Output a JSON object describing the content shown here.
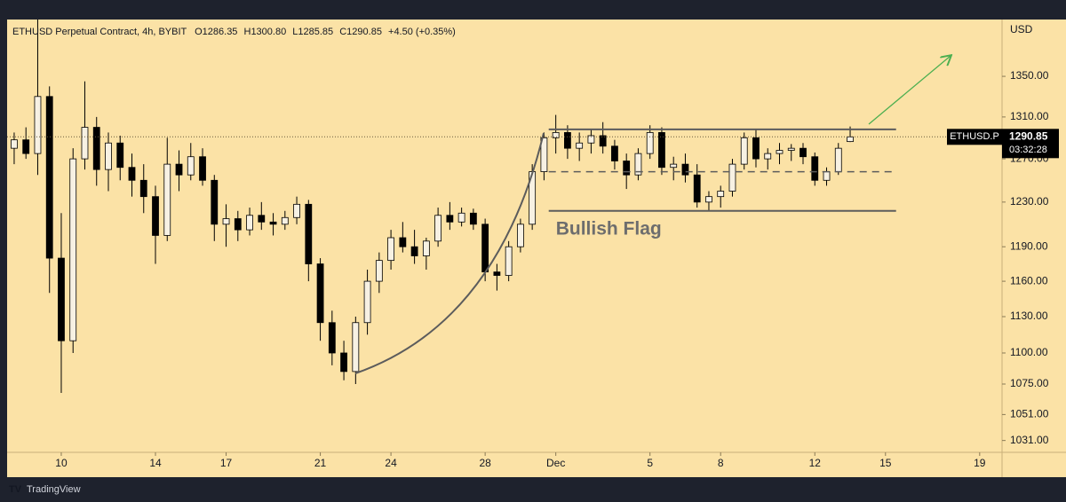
{
  "chart_data": {
    "type": "candlestick",
    "header": {
      "symbol": "ETHUSD Perpetual Contract, 4h, BYBIT",
      "open": "O1286.35",
      "high": "H1300.80",
      "low": "L1285.85",
      "close": "C1290.85",
      "change": "+4.50 (+0.35%)"
    },
    "currency": "USD",
    "symbol_tag": "ETHUSD.P",
    "last_price_label": "1290.85",
    "countdown": "03:32:28",
    "footer": "TradingView",
    "up_color": "#f7f1e3",
    "down_color": "#000000",
    "log_scale": true,
    "ylim": [
      1022,
      1408
    ],
    "yticks": [
      {
        "value": 1350,
        "label": "1350.00"
      },
      {
        "value": 1310,
        "label": "1310.00"
      },
      {
        "value": 1270,
        "label": "1270.00"
      },
      {
        "value": 1230,
        "label": "1230.00"
      },
      {
        "value": 1190,
        "label": "1190.00"
      },
      {
        "value": 1160,
        "label": "1160.00"
      },
      {
        "value": 1130,
        "label": "1130.00"
      },
      {
        "value": 1100,
        "label": "1100.00"
      },
      {
        "value": 1075,
        "label": "1075.00"
      },
      {
        "value": 1051,
        "label": "1051.00"
      },
      {
        "value": 1031,
        "label": "1031.00"
      }
    ],
    "xlim": [
      -0.6,
      83.9
    ],
    "xticks": [
      {
        "value": 4,
        "label": "10"
      },
      {
        "value": 12,
        "label": "14"
      },
      {
        "value": 18,
        "label": "17"
      },
      {
        "value": 26,
        "label": "21"
      },
      {
        "value": 32,
        "label": "24"
      },
      {
        "value": 40,
        "label": "28"
      },
      {
        "value": 46,
        "label": "Dec"
      },
      {
        "value": 54,
        "label": "5"
      },
      {
        "value": 60,
        "label": "8"
      },
      {
        "value": 68,
        "label": "12"
      },
      {
        "value": 74,
        "label": "15"
      },
      {
        "value": 82,
        "label": "19"
      }
    ],
    "flag": {
      "label": "Bullish Flag",
      "top": 1298,
      "middle": 1258,
      "bottom": 1222,
      "start": 45.4,
      "end": 74.9
    },
    "candles": [
      [
        1280,
        1295,
        1265,
        1288
      ],
      [
        1288,
        1300,
        1270,
        1275
      ],
      [
        1275,
        1410,
        1255,
        1330
      ],
      [
        1330,
        1340,
        1150,
        1180
      ],
      [
        1180,
        1220,
        1068,
        1110
      ],
      [
        1110,
        1280,
        1100,
        1270
      ],
      [
        1270,
        1345,
        1260,
        1300
      ],
      [
        1300,
        1310,
        1245,
        1260
      ],
      [
        1260,
        1295,
        1240,
        1285
      ],
      [
        1285,
        1292,
        1250,
        1262
      ],
      [
        1262,
        1275,
        1235,
        1250
      ],
      [
        1250,
        1265,
        1220,
        1235
      ],
      [
        1235,
        1245,
        1175,
        1200
      ],
      [
        1200,
        1290,
        1195,
        1265
      ],
      [
        1265,
        1278,
        1240,
        1255
      ],
      [
        1255,
        1285,
        1250,
        1272
      ],
      [
        1272,
        1280,
        1245,
        1250
      ],
      [
        1250,
        1255,
        1195,
        1210
      ],
      [
        1210,
        1228,
        1190,
        1215
      ],
      [
        1215,
        1222,
        1195,
        1205
      ],
      [
        1205,
        1225,
        1200,
        1218
      ],
      [
        1218,
        1230,
        1205,
        1212
      ],
      [
        1212,
        1220,
        1200,
        1210
      ],
      [
        1210,
        1222,
        1205,
        1216
      ],
      [
        1216,
        1235,
        1210,
        1228
      ],
      [
        1228,
        1232,
        1160,
        1175
      ],
      [
        1175,
        1180,
        1110,
        1125
      ],
      [
        1125,
        1135,
        1090,
        1100
      ],
      [
        1100,
        1110,
        1078,
        1085
      ],
      [
        1085,
        1130,
        1075,
        1125
      ],
      [
        1125,
        1170,
        1115,
        1160
      ],
      [
        1160,
        1185,
        1150,
        1178
      ],
      [
        1178,
        1205,
        1170,
        1198
      ],
      [
        1198,
        1212,
        1185,
        1190
      ],
      [
        1190,
        1205,
        1175,
        1182
      ],
      [
        1182,
        1198,
        1170,
        1195
      ],
      [
        1195,
        1225,
        1190,
        1218
      ],
      [
        1218,
        1230,
        1205,
        1212
      ],
      [
        1212,
        1225,
        1208,
        1220
      ],
      [
        1220,
        1224,
        1205,
        1210
      ],
      [
        1210,
        1215,
        1160,
        1168
      ],
      [
        1168,
        1175,
        1152,
        1165
      ],
      [
        1165,
        1195,
        1160,
        1190
      ],
      [
        1190,
        1215,
        1185,
        1210
      ],
      [
        1210,
        1265,
        1205,
        1258
      ],
      [
        1258,
        1295,
        1250,
        1290
      ],
      [
        1290,
        1312,
        1275,
        1295
      ],
      [
        1295,
        1302,
        1270,
        1280
      ],
      [
        1280,
        1295,
        1268,
        1285
      ],
      [
        1285,
        1298,
        1275,
        1292
      ],
      [
        1292,
        1305,
        1275,
        1282
      ],
      [
        1282,
        1288,
        1260,
        1268
      ],
      [
        1268,
        1275,
        1242,
        1255
      ],
      [
        1255,
        1280,
        1250,
        1275
      ],
      [
        1275,
        1302,
        1270,
        1295
      ],
      [
        1295,
        1300,
        1255,
        1262
      ],
      [
        1262,
        1272,
        1250,
        1265
      ],
      [
        1265,
        1275,
        1248,
        1255
      ],
      [
        1255,
        1265,
        1225,
        1230
      ],
      [
        1230,
        1240,
        1222,
        1235
      ],
      [
        1235,
        1245,
        1225,
        1240
      ],
      [
        1240,
        1270,
        1235,
        1265
      ],
      [
        1265,
        1295,
        1260,
        1290
      ],
      [
        1290,
        1298,
        1262,
        1270
      ],
      [
        1270,
        1280,
        1260,
        1275
      ],
      [
        1275,
        1285,
        1265,
        1278
      ],
      [
        1278,
        1284,
        1268,
        1280
      ],
      [
        1280,
        1285,
        1265,
        1272
      ],
      [
        1272,
        1276,
        1245,
        1250
      ],
      [
        1250,
        1262,
        1245,
        1258
      ],
      [
        1258,
        1285,
        1255,
        1280
      ],
      [
        1286.35,
        1300.8,
        1285.85,
        1290.85
      ]
    ]
  }
}
